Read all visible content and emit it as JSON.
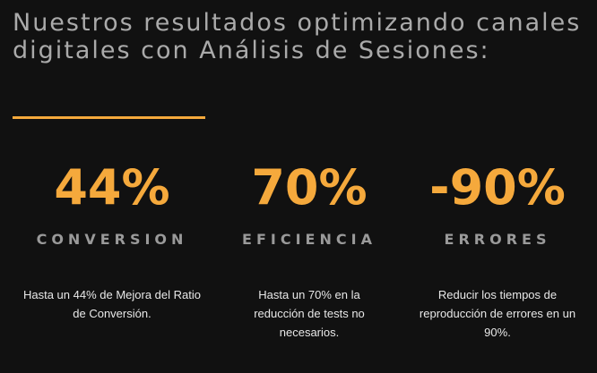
{
  "heading": "Nuestros resultados optimizando canales digitales con Análisis de Sesiones:",
  "colors": {
    "background": "#111111",
    "accent": "#f5a93c",
    "heading_text": "#aaaaaa",
    "label_text": "#9a9a9a",
    "body_text": "#e8e8e8"
  },
  "stats": [
    {
      "value": "44%",
      "label": "CONVERSION",
      "description": "Hasta un 44% de Mejora del Ratio de Conversión."
    },
    {
      "value": "70%",
      "label": "EFICIENCIA",
      "description": "Hasta un 70% en la reducción de tests no necesarios."
    },
    {
      "value": "-90%",
      "label": "ERRORES",
      "description": "Reducir los tiempos de reproducción de errores en un 90%."
    }
  ]
}
